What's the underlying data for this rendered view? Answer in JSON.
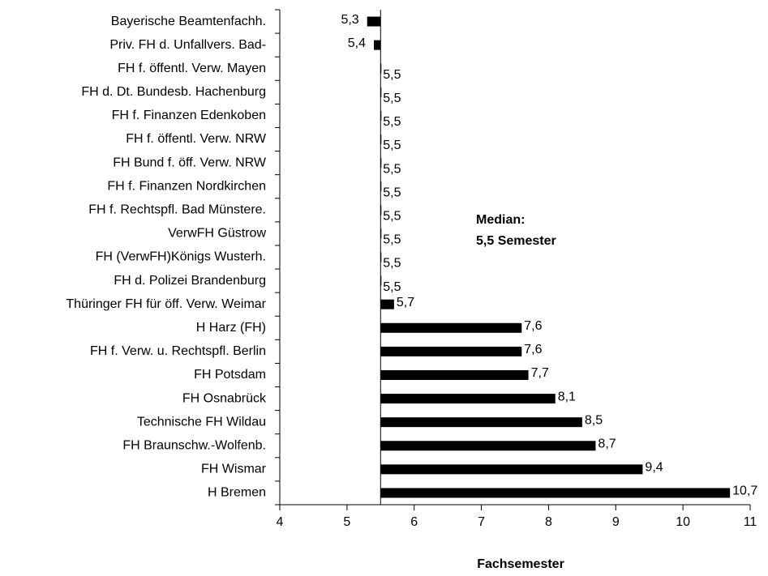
{
  "chart_data": {
    "type": "bar",
    "orientation": "horizontal",
    "categories": [
      "Bayerische Beamtenfachh.",
      "Priv. FH d. Unfallvers. Bad-",
      "FH f. öffentl. Verw. Mayen",
      "FH d. Dt. Bundesb. Hachenburg",
      "FH f. Finanzen Edenkoben",
      "FH f. öffentl. Verw. NRW",
      "FH Bund f. öff. Verw. NRW",
      "FH f. Finanzen Nordkirchen",
      "FH f. Rechtspfl. Bad Münstere.",
      "VerwFH Güstrow",
      "FH (VerwFH)Königs Wusterh.",
      "FH d. Polizei Brandenburg",
      "Thüringer FH für öff. Verw. Weimar",
      "H Harz (FH)",
      "FH f. Verw. u. Rechtspfl. Berlin",
      "FH Potsdam",
      "FH Osnabrück",
      "Technische FH Wildau",
      "FH Braunschw.-Wolfenb.",
      "FH Wismar",
      "H Bremen"
    ],
    "values": [
      5.3,
      5.4,
      5.5,
      5.5,
      5.5,
      5.5,
      5.5,
      5.5,
      5.5,
      5.5,
      5.5,
      5.5,
      5.7,
      7.6,
      7.6,
      7.7,
      8.1,
      8.5,
      8.7,
      9.4,
      10.7
    ],
    "value_labels": [
      "5,3",
      "5,4",
      "5,5",
      "5,5",
      "5,5",
      "5,5",
      "5,5",
      "5,5",
      "5,5",
      "5,5",
      "5,5",
      "5,5",
      "5,7",
      "7,6",
      "7,6",
      "7,7",
      "8,1",
      "8,5",
      "8,7",
      "9,4",
      "10,7"
    ],
    "baseline": 5.5,
    "color": "#000000",
    "xlim": [
      4,
      11
    ],
    "xticks": [
      4,
      5,
      6,
      7,
      8,
      9,
      10,
      11
    ],
    "x_label": "Fachsemester",
    "annotation": [
      "Median:",
      "5,5 Semester"
    ]
  }
}
